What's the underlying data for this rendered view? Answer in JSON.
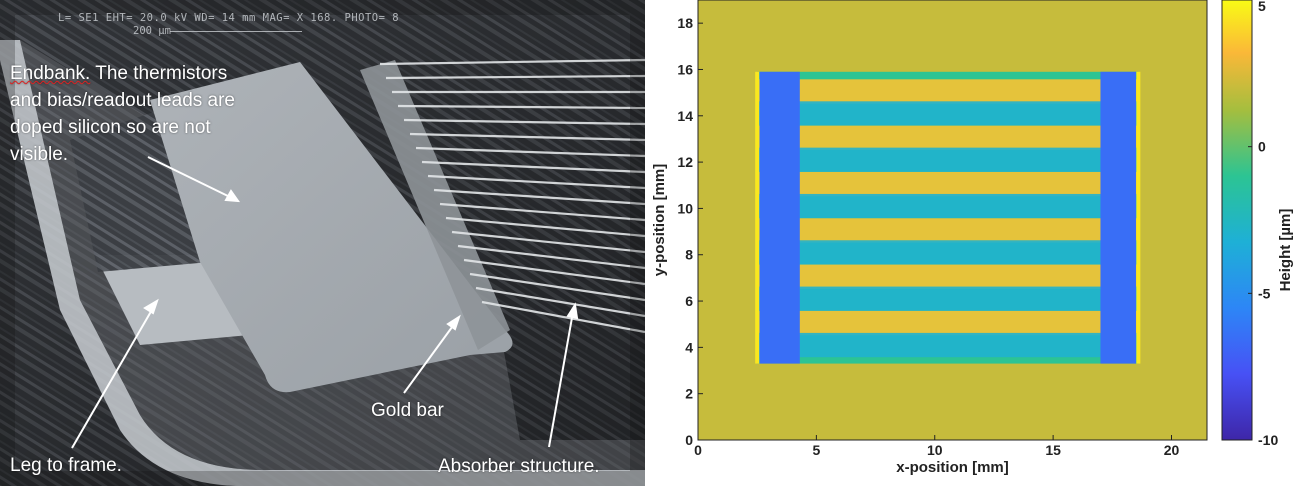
{
  "sem_photo": {
    "header_line": "L= SE1    EHT= 20.0 kV   WD= 14  mm     MAG= X 168.   PHOTO= 8",
    "scale_bar_label": "200 µm",
    "annotations": {
      "endbank": [
        "Endbank.",
        "The thermistors",
        "and bias/readout leads are",
        "doped silicon so are not",
        "visible."
      ],
      "leg_to_frame": "Leg to frame.",
      "gold_bar": "Gold bar",
      "absorber_structure": "Absorber structure."
    }
  },
  "chart_data": {
    "type": "heatmap",
    "title": "",
    "xlabel": "x-position [mm]",
    "ylabel": "y-position [mm]",
    "colorbar_label": "Height [µm]",
    "xlim": [
      0,
      21.5
    ],
    "ylim": [
      0,
      19
    ],
    "x_ticks": [
      0,
      5,
      10,
      15,
      20
    ],
    "y_ticks": [
      0,
      2,
      4,
      6,
      8,
      10,
      12,
      14,
      16,
      18
    ],
    "colorbar_range": [
      -10,
      5
    ],
    "colorbar_ticks": [
      5,
      0,
      -5,
      -10
    ],
    "colormap": "parula",
    "background_height": 2,
    "absorber": {
      "x_range": [
        2.5,
        18.6
      ],
      "y_range": [
        3.3,
        15.9
      ],
      "end_bands_x": [
        [
          2.6,
          4.3
        ],
        [
          17.0,
          18.5
        ]
      ],
      "end_band_height": -6.5,
      "stripes": [
        {
          "y_center": 15.05,
          "height": 3.5
        },
        {
          "y_center": 14.1,
          "height": -3
        },
        {
          "y_center": 13.05,
          "height": 3.5
        },
        {
          "y_center": 12.1,
          "height": -3
        },
        {
          "y_center": 11.05,
          "height": 3.5
        },
        {
          "y_center": 10.1,
          "height": -3
        },
        {
          "y_center": 9.05,
          "height": 3.5
        },
        {
          "y_center": 8.1,
          "height": -3
        },
        {
          "y_center": 7.05,
          "height": 3.5
        },
        {
          "y_center": 6.1,
          "height": -3
        },
        {
          "y_center": 5.05,
          "height": 3.5
        },
        {
          "y_center": 4.1,
          "height": -3
        }
      ]
    }
  }
}
